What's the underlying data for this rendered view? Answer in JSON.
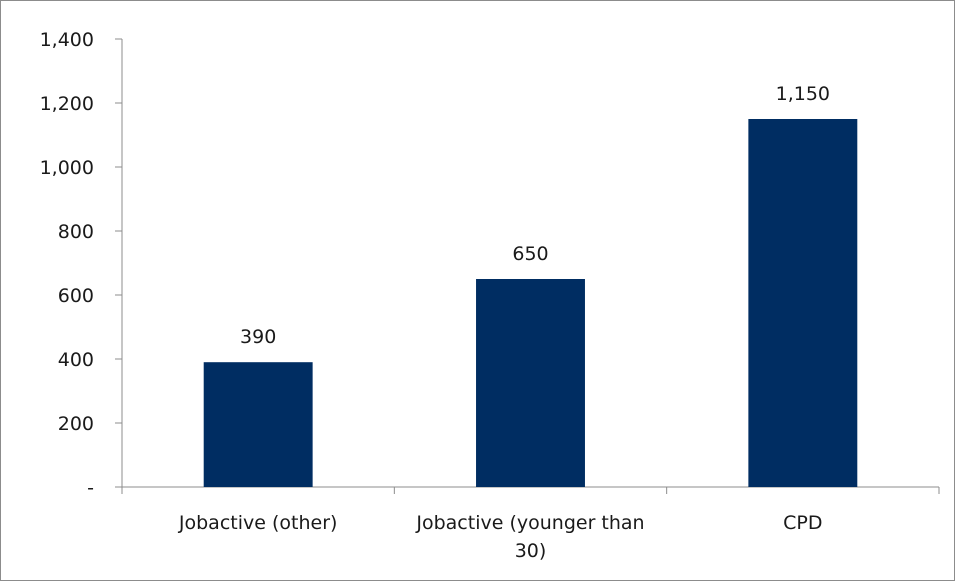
{
  "chart_data": {
    "type": "bar",
    "categories": [
      [
        "Jobactive (other)"
      ],
      [
        "Jobactive (younger than",
        "30)"
      ],
      [
        "CPD"
      ]
    ],
    "values": [
      390,
      650,
      1150
    ],
    "data_labels": [
      "390",
      "650",
      "1,150"
    ],
    "ylim": [
      0,
      1400
    ],
    "yticks": [
      0,
      200,
      400,
      600,
      800,
      1000,
      1200,
      1400
    ],
    "ytick_labels": [
      "-",
      "200",
      "400",
      "600",
      "800",
      "1,000",
      "1,200",
      "1,400"
    ],
    "grid": false,
    "legend": "none",
    "colors": {
      "bar": "#002D62",
      "axis": "#8c8c8c"
    }
  }
}
